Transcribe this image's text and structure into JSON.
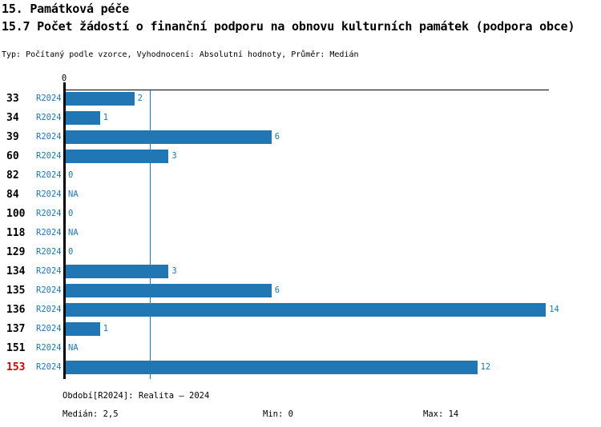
{
  "header": {
    "title_line1": "15. Památková péče",
    "title_line2": "15.7 Počet žádostí o finanční podporu na obnovu kulturních památek (podpora obce)",
    "subtitle": "Typ: Počítaný podle vzorce, Vyhodnocení: Absolutní hodnoty, Průměr: Medián"
  },
  "chart_data": {
    "type": "bar",
    "orientation": "horizontal",
    "title": "15.7 Počet žádostí o finanční podporu na obnovu kulturních památek (podpora obce)",
    "categories": [
      "33",
      "34",
      "39",
      "60",
      "82",
      "84",
      "100",
      "118",
      "129",
      "134",
      "135",
      "136",
      "137",
      "151",
      "153"
    ],
    "series": [
      {
        "name": "R2024",
        "values": [
          2,
          1,
          6,
          3,
          0,
          null,
          0,
          null,
          0,
          3,
          6,
          14,
          1,
          null,
          12
        ],
        "value_labels": [
          "2",
          "1",
          "6",
          "3",
          "0",
          "NA",
          "0",
          "NA",
          "0",
          "3",
          "6",
          "14",
          "1",
          "NA",
          "12"
        ]
      }
    ],
    "xlim": [
      0,
      14.1
    ],
    "x_tick_labels": [
      "0"
    ],
    "median_reference_line": 2.5,
    "highlighted_category": "153",
    "grid": false,
    "legend_position": "none"
  },
  "footer": {
    "period": "Období[R2024]: Realita – 2024",
    "median": "Medián: 2,5",
    "min": "Min: 0",
    "max": "Max: 14"
  },
  "colors": {
    "bar": "#2077b4",
    "blue_text": "#1f77b4",
    "median_line": "#1f77b4",
    "highlight_red": "#d40000",
    "axis_black": "#000000"
  }
}
